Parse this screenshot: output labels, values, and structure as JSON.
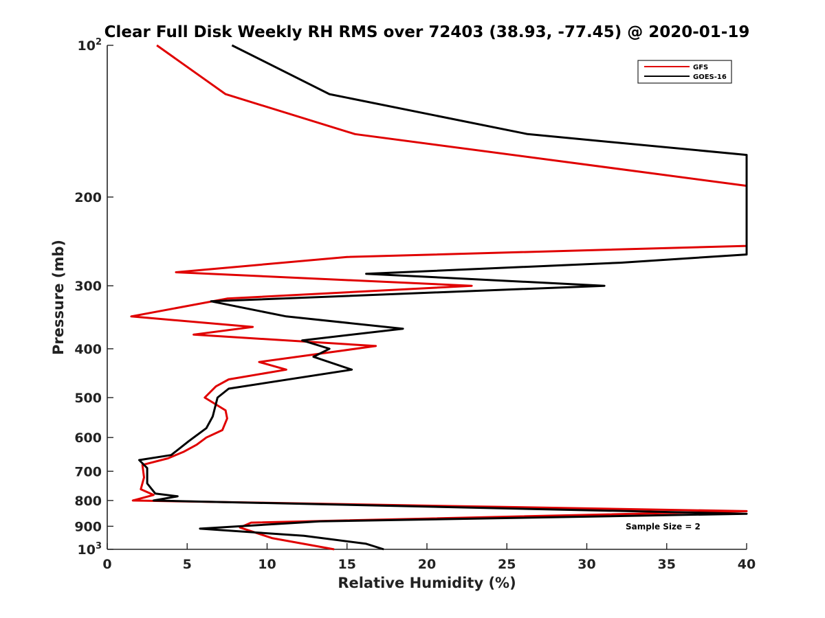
{
  "chart_data": {
    "type": "line",
    "title": "Clear Full Disk Weekly RH RMS over 72403 (38.93, -77.45) @ 2020-01-19",
    "xlabel": "Relative Humidity (%)",
    "ylabel": "Pressure (mb)",
    "xlim": [
      0,
      40
    ],
    "ylim": [
      100,
      1000
    ],
    "y_scale": "log",
    "y_reversed": true,
    "grid": false,
    "legend_position": "top-right",
    "x_ticks": [
      0,
      5,
      10,
      15,
      20,
      25,
      30,
      35,
      40
    ],
    "x_tick_labels": [
      "0",
      "5",
      "10",
      "15",
      "20",
      "25",
      "30",
      "35",
      "40"
    ],
    "y_ticks": [
      100,
      200,
      300,
      400,
      500,
      600,
      700,
      800,
      900,
      1000
    ],
    "y_tick_labels": [
      {
        "base": "10",
        "exp": "2"
      },
      {
        "base": "200",
        "exp": ""
      },
      {
        "base": "300",
        "exp": ""
      },
      {
        "base": "400",
        "exp": ""
      },
      {
        "base": "500",
        "exp": ""
      },
      {
        "base": "600",
        "exp": ""
      },
      {
        "base": "700",
        "exp": ""
      },
      {
        "base": "800",
        "exp": ""
      },
      {
        "base": "900",
        "exp": ""
      },
      {
        "base": "10",
        "exp": "3"
      }
    ],
    "annotation": "Sample Size = 2",
    "series": [
      {
        "name": "GFS",
        "color": "#e00000",
        "points": [
          [
            3.1,
            100
          ],
          [
            7.4,
            125
          ],
          [
            15.5,
            150
          ],
          [
            40,
            190
          ],
          [
            40,
            250
          ],
          [
            15.0,
            263
          ],
          [
            4.3,
            282
          ],
          [
            22.8,
            300
          ],
          [
            7.5,
            318
          ],
          [
            1.5,
            345
          ],
          [
            9.1,
            362
          ],
          [
            5.4,
            375
          ],
          [
            16.8,
            395
          ],
          [
            9.5,
            425
          ],
          [
            11.2,
            440
          ],
          [
            7.6,
            460
          ],
          [
            6.8,
            475
          ],
          [
            6.1,
            500
          ],
          [
            7.4,
            530
          ],
          [
            7.5,
            550
          ],
          [
            7.2,
            580
          ],
          [
            6.2,
            600
          ],
          [
            5.6,
            620
          ],
          [
            4.8,
            640
          ],
          [
            3.8,
            660
          ],
          [
            2.2,
            680
          ],
          [
            2.3,
            720
          ],
          [
            2.1,
            760
          ],
          [
            2.9,
            780
          ],
          [
            1.6,
            800
          ],
          [
            40,
            840
          ],
          [
            9.0,
            885
          ],
          [
            8.3,
            905
          ],
          [
            10.3,
            950
          ],
          [
            14.2,
            1000
          ]
        ]
      },
      {
        "name": "GOES-16",
        "color": "#000000",
        "points": [
          [
            7.8,
            100
          ],
          [
            13.9,
            125
          ],
          [
            26.3,
            150
          ],
          [
            40,
            165
          ],
          [
            40,
            260
          ],
          [
            32.1,
            270
          ],
          [
            16.2,
            284
          ],
          [
            31.1,
            300
          ],
          [
            6.5,
            322
          ],
          [
            11.2,
            345
          ],
          [
            18.5,
            365
          ],
          [
            12.2,
            385
          ],
          [
            13.9,
            400
          ],
          [
            12.9,
            415
          ],
          [
            15.3,
            440
          ],
          [
            7.6,
            480
          ],
          [
            6.9,
            500
          ],
          [
            6.6,
            545
          ],
          [
            6.2,
            575
          ],
          [
            5.1,
            610
          ],
          [
            4.0,
            650
          ],
          [
            2.0,
            665
          ],
          [
            2.5,
            690
          ],
          [
            2.5,
            740
          ],
          [
            3.0,
            775
          ],
          [
            4.4,
            785
          ],
          [
            2.9,
            800
          ],
          [
            40,
            850
          ],
          [
            13.3,
            880
          ],
          [
            5.8,
            910
          ],
          [
            12.3,
            940
          ],
          [
            16.2,
            975
          ],
          [
            17.3,
            1000
          ]
        ]
      }
    ]
  }
}
